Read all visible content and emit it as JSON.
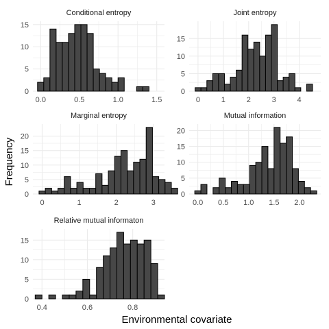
{
  "figure": {
    "ylabel": "Frequency",
    "xlabel": "Environmental covariate"
  },
  "colors": {
    "bar_fill": "#474747",
    "bar_stroke": "#000000",
    "grid": "#ebebeb",
    "text": "#4d4d4d",
    "title": "#1a1a1a"
  },
  "chart_data": [
    {
      "type": "bar",
      "title": "Conditional entropy",
      "bin_start": -0.04,
      "bin_width": 0.08,
      "values": [
        2,
        3,
        14,
        11,
        11,
        13,
        15,
        15,
        13,
        5,
        4,
        3,
        2,
        3,
        0,
        0,
        1,
        1
      ],
      "xticks": [
        0,
        0.5,
        1.0,
        1.5
      ],
      "xtick_labels": [
        "0.0",
        "0.5",
        "1.0",
        "1.5"
      ],
      "yticks": [
        0,
        5,
        10,
        15
      ],
      "xlim": [
        -0.1,
        1.6
      ],
      "ylim": [
        0,
        15.75
      ],
      "grid": true
    },
    {
      "type": "bar",
      "title": "Joint entropy",
      "bin_start": -0.116,
      "bin_width": 0.232,
      "values": [
        1,
        1,
        3,
        5,
        5,
        2,
        4,
        6,
        16,
        12,
        14,
        10,
        16,
        19,
        3,
        4,
        5,
        1,
        0,
        2
      ],
      "xticks": [
        0,
        1,
        2,
        3,
        4
      ],
      "xtick_labels": [
        "0",
        "1",
        "2",
        "3",
        "4"
      ],
      "yticks": [
        0,
        5,
        10,
        15
      ],
      "xlim": [
        -0.35,
        4.85
      ],
      "ylim": [
        0,
        19.95
      ],
      "grid": true
    },
    {
      "type": "bar",
      "title": "Marginal entropy",
      "bin_start": -0.085,
      "bin_width": 0.17,
      "values": [
        1,
        2,
        1,
        2,
        6,
        2,
        4,
        2,
        2,
        7,
        3,
        8,
        13,
        15,
        8,
        11,
        12,
        23,
        6,
        5,
        4,
        2
      ],
      "xticks": [
        0,
        1,
        2,
        3
      ],
      "xtick_labels": [
        "0",
        "1",
        "2",
        "3"
      ],
      "yticks": [
        0,
        5,
        10,
        15,
        20
      ],
      "xlim": [
        -0.25,
        3.3
      ],
      "ylim": [
        0,
        24.15
      ],
      "grid": true
    },
    {
      "type": "bar",
      "title": "Mutual information",
      "bin_start": -0.06,
      "bin_width": 0.12,
      "values": [
        1,
        3,
        0,
        2,
        5,
        2,
        4,
        3,
        3,
        9,
        10,
        15,
        8,
        21,
        16,
        18,
        8,
        4,
        2,
        1
      ],
      "xticks": [
        0,
        0.5,
        1.0,
        1.5,
        2.0
      ],
      "xtick_labels": [
        "0.0",
        "0.5",
        "1.0",
        "1.5",
        "2.0"
      ],
      "yticks": [
        0,
        5,
        10,
        15,
        20
      ],
      "xlim": [
        -0.17,
        2.42
      ],
      "ylim": [
        0,
        22.05
      ],
      "grid": true
    },
    {
      "type": "bar",
      "title": "Relative mutual informaton",
      "bin_start": 0.37,
      "bin_width": 0.03,
      "values": [
        1,
        0,
        1,
        0,
        1,
        1,
        2,
        5,
        1,
        8,
        11,
        13,
        17,
        14,
        15,
        14,
        15,
        9,
        1
      ],
      "xticks": [
        0.4,
        0.6,
        0.8
      ],
      "xtick_labels": [
        "0.4",
        "0.6",
        "0.8"
      ],
      "yticks": [
        0,
        5,
        10,
        15
      ],
      "xlim": [
        0.36,
        0.94
      ],
      "ylim": [
        0,
        17.85
      ],
      "grid": true
    }
  ]
}
